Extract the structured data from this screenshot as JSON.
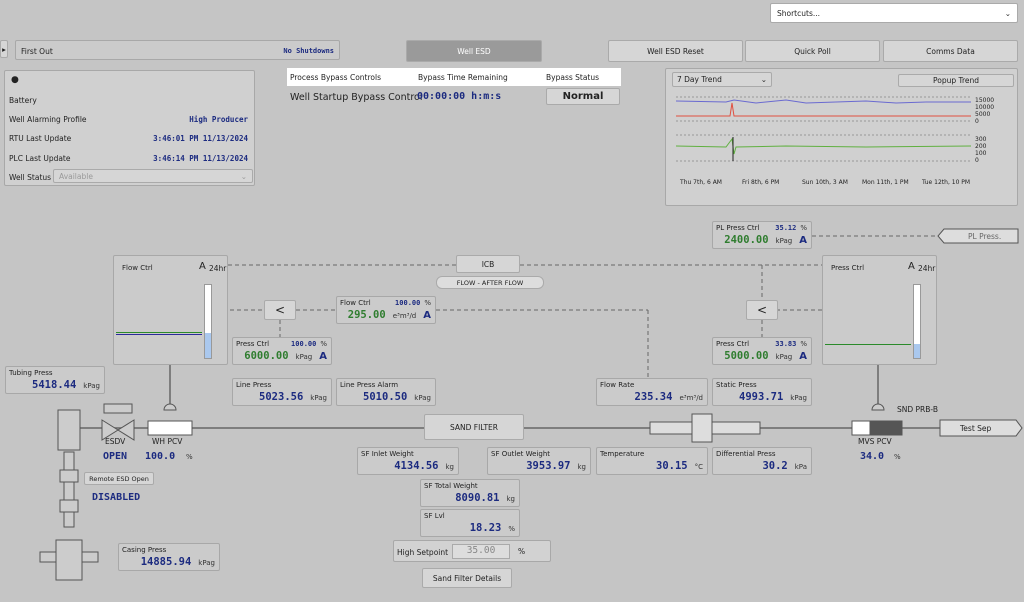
{
  "header": {
    "shortcuts": "Shortcuts...",
    "first_out_label": "First Out",
    "first_out_value": "No Shutdowns",
    "buttons": [
      "Well ESD",
      "Well ESD Reset",
      "Quick Poll",
      "Comms Data"
    ]
  },
  "info": {
    "battery": "Battery",
    "rows": [
      [
        "Well Alarming Profile",
        "High Producer"
      ],
      [
        "RTU Last Update",
        "3:46:01 PM 11/13/2024"
      ],
      [
        "PLC Last Update",
        "3:46:14 PM 11/13/2024"
      ]
    ],
    "well_status_label": "Well Status",
    "well_status_value": "Available"
  },
  "bypass": {
    "headers": [
      "Process Bypass Controls",
      "Bypass Time Remaining",
      "Bypass Status"
    ],
    "row": [
      "Well Startup Bypass Control",
      "00:00:00 h:m:s",
      "Normal"
    ]
  },
  "trend": {
    "range": "7 Day Trend",
    "popup": "Popup Trend",
    "upper_ticks": [
      "15000",
      "10000",
      "5000",
      "0"
    ],
    "lower_ticks": [
      "300",
      "200",
      "100",
      "0"
    ],
    "x_labels": [
      "Thu 7th, 6 AM",
      "Fri 8th, 6 PM",
      "Sun 10th, 3 AM",
      "Mon 11th, 1 PM",
      "Tue 12th, 10 PM"
    ]
  },
  "diagram": {
    "flow_trend": {
      "title": "Flow Ctrl",
      "mode": "A",
      "period": "24hr"
    },
    "press_trend": {
      "title": "Press Ctrl",
      "mode": "A",
      "period": "24hr"
    },
    "icb": "ICB",
    "flow_after_flow": "FLOW - AFTER FLOW",
    "less": "<",
    "controllers": [
      {
        "label": "Flow Ctrl",
        "pct": "100.00",
        "pct_unit": "%",
        "value": "295.00",
        "unit": "e³m³/d",
        "mode": "A"
      },
      {
        "label": "Press Ctrl",
        "pct": "100.00",
        "pct_unit": "%",
        "value": "6000.00",
        "unit": "kPag",
        "mode": "A"
      },
      {
        "label": "PL Press Ctrl",
        "pct": "35.12",
        "pct_unit": "%",
        "value": "2400.00",
        "unit": "kPag",
        "mode": "A"
      },
      {
        "label": "Press Ctrl",
        "pct": "33.83",
        "pct_unit": "%",
        "value": "5000.00",
        "unit": "kPag",
        "mode": "A"
      }
    ],
    "readings": [
      {
        "label": "Tubing Press",
        "value": "5418.44",
        "unit": "kPag"
      },
      {
        "label": "Line Press",
        "value": "5023.56",
        "unit": "kPag"
      },
      {
        "label": "Line Press Alarm",
        "value": "5010.50",
        "unit": "kPag"
      },
      {
        "label": "Flow Rate",
        "value": "235.34",
        "unit": "e³m³/d"
      },
      {
        "label": "Static Press",
        "value": "4993.71",
        "unit": "kPag"
      },
      {
        "label": "SF Inlet Weight",
        "value": "4134.56",
        "unit": "kg"
      },
      {
        "label": "SF Outlet Weight",
        "value": "3953.97",
        "unit": "kg"
      },
      {
        "label": "Temperature",
        "value": "30.15",
        "unit": "°C"
      },
      {
        "label": "Differential Press",
        "value": "30.2",
        "unit": "kPa"
      },
      {
        "label": "SF Total Weight",
        "value": "8090.81",
        "unit": "kg"
      },
      {
        "label": "SF Lvl",
        "value": "18.23",
        "unit": "%"
      },
      {
        "label": "Casing Press",
        "value": "14885.94",
        "unit": "kPag"
      }
    ],
    "esdv": {
      "label": "ESDV",
      "status": "OPEN"
    },
    "wh_pcv": {
      "label": "WH PCV",
      "value": "100.0",
      "unit": "%"
    },
    "mvs_pcv": {
      "label": "MVS PCV",
      "value": "34.0",
      "unit": "%"
    },
    "sand_filter": "SAND FILTER",
    "remote_esd": {
      "label": "Remote ESD Open",
      "status": "DISABLED"
    },
    "snd": "SND PRB-B",
    "test_sep": "Test Sep",
    "pl_press": "PL Press.",
    "high_setpoint": {
      "label": "High Setpoint",
      "value": "35.00",
      "unit": "%"
    },
    "details": "Sand Filter Details"
  }
}
